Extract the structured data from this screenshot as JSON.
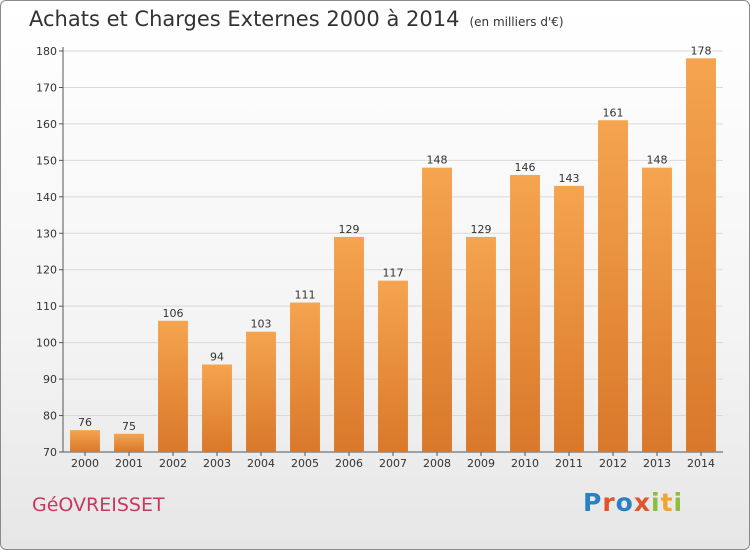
{
  "title": "Achats et Charges Externes 2000 à 2014",
  "subtitle": "(en milliers d'€)",
  "place": "GéOVREISSET",
  "logo": {
    "letters": [
      "P",
      "r",
      "o",
      "x",
      "i",
      "t",
      "i"
    ],
    "colors": [
      "#2b7fc3",
      "#e0552b",
      "#2b7fc3",
      "#e0552b",
      "#8cbd3f",
      "#f2a632",
      "#8cbd3f"
    ]
  },
  "colors": {
    "bar_light": "#f5a44f",
    "bar_dark": "#d9782a",
    "grid": "#d9d9d9"
  },
  "chart_data": {
    "type": "bar",
    "categories": [
      "2000",
      "2001",
      "2002",
      "2003",
      "2004",
      "2005",
      "2006",
      "2007",
      "2008",
      "2009",
      "2010",
      "2011",
      "2012",
      "2013",
      "2014"
    ],
    "values": [
      76,
      75,
      106,
      94,
      103,
      111,
      129,
      117,
      148,
      129,
      146,
      143,
      161,
      148,
      178
    ],
    "ylim": [
      70,
      180
    ],
    "yticks": [
      70,
      80,
      90,
      100,
      110,
      120,
      130,
      140,
      150,
      160,
      170,
      180
    ],
    "grid": true
  }
}
